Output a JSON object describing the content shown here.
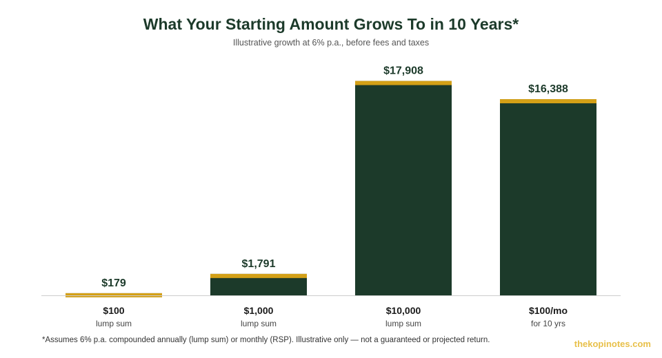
{
  "chart_data": {
    "type": "bar",
    "title": "What Your Starting Amount Grows To in 10 Years*",
    "subtitle": "Illustrative growth at 6% p.a., before fees and taxes",
    "categories": [
      "$100",
      "$1,000",
      "$10,000",
      "$100/mo"
    ],
    "category_sublabels": [
      "lump sum",
      "lump sum",
      "lump sum",
      "for 10 yrs"
    ],
    "values": [
      179,
      1791,
      17908,
      16388
    ],
    "value_labels": [
      "$179",
      "$1,791",
      "$17,908",
      "$16,388"
    ],
    "ylim": [
      0,
      18000
    ],
    "grid": false,
    "legend": "none",
    "colors": {
      "bar": "#1c3a2a",
      "cap": "#d4a017",
      "title": "#1c3a2a",
      "axis": "#cccccc"
    }
  },
  "footnote": "*Assumes 6% p.a. compounded annually (lump sum) or monthly (RSP). Illustrative only — not a guaranteed or projected return.",
  "watermark": "thekopinotes.com"
}
